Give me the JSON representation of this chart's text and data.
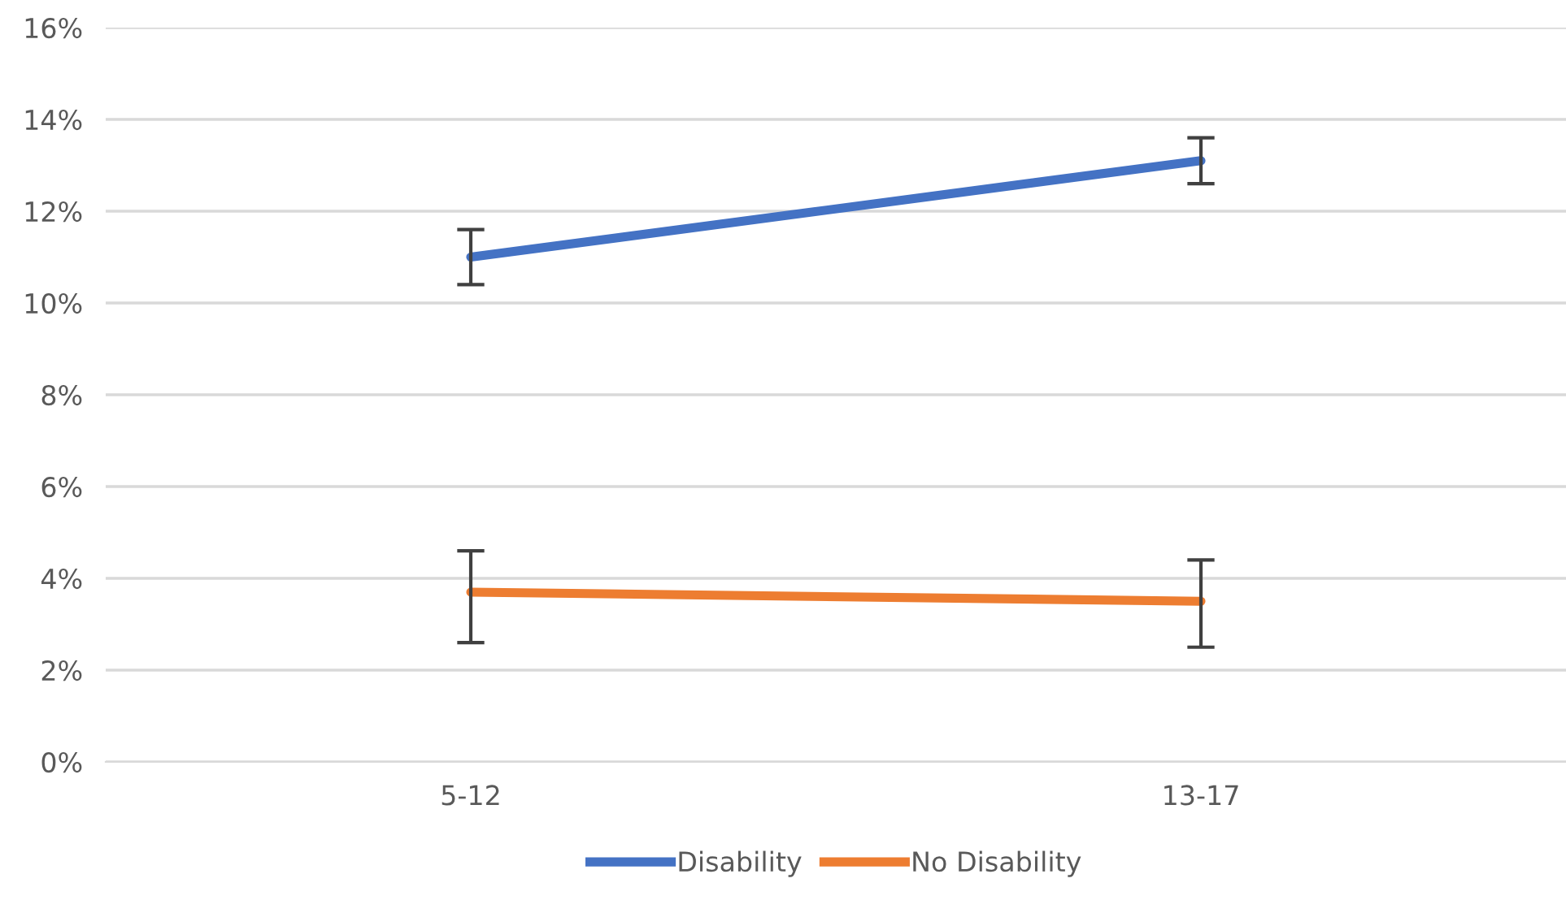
{
  "chart_data": {
    "type": "line",
    "categories": [
      "5-12",
      "13-17"
    ],
    "series": [
      {
        "name": "Disability",
        "color": "#4472c4",
        "values": [
          11.0,
          13.1
        ],
        "errors": [
          [
            10.4,
            11.6
          ],
          [
            12.6,
            13.6
          ]
        ]
      },
      {
        "name": "No Disability",
        "color": "#ed7d31",
        "values": [
          3.7,
          3.5
        ],
        "errors": [
          [
            2.6,
            4.6
          ],
          [
            2.5,
            4.4
          ]
        ]
      }
    ],
    "ylim": [
      0,
      16
    ],
    "yticks": [
      {
        "value": 0,
        "label": "0%"
      },
      {
        "value": 2,
        "label": "2%"
      },
      {
        "value": 4,
        "label": "4%"
      },
      {
        "value": 6,
        "label": "6%"
      },
      {
        "value": 8,
        "label": "8%"
      },
      {
        "value": 10,
        "label": "10%"
      },
      {
        "value": 12,
        "label": "12%"
      },
      {
        "value": 14,
        "label": "14%"
      },
      {
        "value": 16,
        "label": "16%"
      }
    ],
    "grid": "y",
    "legend": "bottom",
    "marker": "none",
    "line_style": "solid"
  }
}
